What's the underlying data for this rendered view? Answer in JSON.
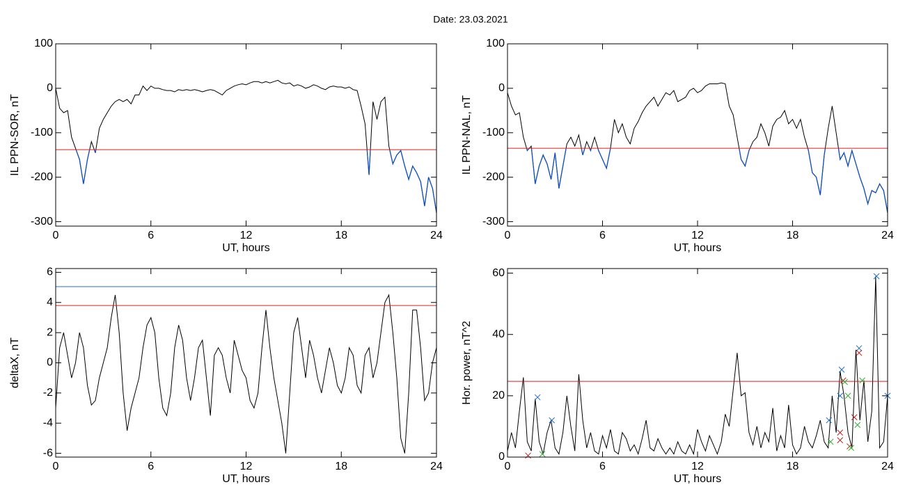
{
  "title": "Date:  23.03.2021",
  "chart_data": [
    {
      "type": "line",
      "ylabel": "IL PPN-SOR, nT",
      "xlabel": "UT, hours",
      "xlim": [
        0,
        24
      ],
      "xticks": [
        0,
        6,
        12,
        18,
        24
      ],
      "ylim": [
        -310,
        100
      ],
      "yticks": [
        -300,
        -200,
        -100,
        0,
        100
      ],
      "x": [
        0,
        0.25,
        0.5,
        0.75,
        1,
        1.25,
        1.5,
        1.75,
        2,
        2.25,
        2.5,
        2.75,
        3,
        3.25,
        3.5,
        3.75,
        4,
        4.25,
        4.5,
        4.75,
        5,
        5.25,
        5.5,
        5.75,
        6,
        6.25,
        6.5,
        6.75,
        7,
        7.25,
        7.5,
        7.75,
        8,
        8.25,
        8.5,
        8.75,
        9,
        9.25,
        9.5,
        9.75,
        10,
        10.25,
        10.5,
        10.75,
        11,
        11.25,
        11.5,
        11.75,
        12,
        12.25,
        12.5,
        12.75,
        13,
        13.25,
        13.5,
        13.75,
        14,
        14.25,
        14.5,
        14.75,
        15,
        15.25,
        15.5,
        15.75,
        16,
        16.25,
        16.5,
        16.75,
        17,
        17.25,
        17.5,
        17.75,
        18,
        18.25,
        18.5,
        18.75,
        19,
        19.25,
        19.5,
        19.75,
        20,
        20.25,
        20.5,
        20.75,
        21,
        21.25,
        21.5,
        21.75,
        22,
        22.25,
        22.5,
        22.75,
        23,
        23.25,
        23.5,
        23.75,
        24
      ],
      "series": [
        {
          "color": "#000000",
          "below_color": "#1050c0",
          "values": [
            0,
            -45,
            -55,
            -50,
            -110,
            -135,
            -160,
            -215,
            -160,
            -120,
            -145,
            -90,
            -70,
            -55,
            -40,
            -30,
            -25,
            -30,
            -25,
            -35,
            -15,
            -15,
            5,
            -5,
            5,
            0,
            0,
            -3,
            -5,
            -5,
            -8,
            -3,
            -5,
            -3,
            -5,
            -3,
            -5,
            -8,
            -5,
            -3,
            -5,
            -10,
            -15,
            -5,
            0,
            5,
            8,
            10,
            8,
            12,
            15,
            15,
            12,
            15,
            12,
            15,
            18,
            12,
            10,
            12,
            5,
            8,
            5,
            0,
            3,
            8,
            5,
            0,
            -3,
            3,
            5,
            3,
            3,
            0,
            3,
            -3,
            -5,
            -40,
            -80,
            -195,
            -30,
            -70,
            -30,
            -20,
            -130,
            -170,
            -150,
            -140,
            -175,
            -205,
            -175,
            -190,
            -210,
            -265,
            -200,
            -225,
            -280
          ]
        }
      ],
      "hlines": [
        {
          "value": -138,
          "color": "#d62020"
        }
      ]
    },
    {
      "type": "line",
      "ylabel": "IL PPN-NAL, nT",
      "xlabel": "UT, hours",
      "xlim": [
        0,
        24
      ],
      "xticks": [
        0,
        6,
        12,
        18,
        24
      ],
      "ylim": [
        -310,
        100
      ],
      "yticks": [
        -300,
        -200,
        -100,
        0,
        100
      ],
      "x": [
        0,
        0.25,
        0.5,
        0.75,
        1,
        1.25,
        1.5,
        1.75,
        2,
        2.25,
        2.5,
        2.75,
        3,
        3.25,
        3.5,
        3.75,
        4,
        4.25,
        4.5,
        4.75,
        5,
        5.25,
        5.5,
        5.75,
        6,
        6.25,
        6.5,
        6.75,
        7,
        7.25,
        7.5,
        7.75,
        8,
        8.25,
        8.5,
        8.75,
        9,
        9.25,
        9.5,
        9.75,
        10,
        10.25,
        10.5,
        10.75,
        11,
        11.25,
        11.5,
        11.75,
        12,
        12.25,
        12.5,
        12.75,
        13,
        13.25,
        13.5,
        13.75,
        14,
        14.25,
        14.5,
        14.75,
        15,
        15.25,
        15.5,
        15.75,
        16,
        16.25,
        16.5,
        16.75,
        17,
        17.25,
        17.5,
        17.75,
        18,
        18.25,
        18.5,
        18.75,
        19,
        19.25,
        19.5,
        19.75,
        20,
        20.25,
        20.5,
        20.75,
        21,
        21.25,
        21.5,
        21.75,
        22,
        22.25,
        22.5,
        22.75,
        23,
        23.25,
        23.5,
        23.75,
        24
      ],
      "series": [
        {
          "color": "#000000",
          "below_color": "#1050c0",
          "values": [
            -10,
            -40,
            -60,
            -55,
            -110,
            -140,
            -130,
            -215,
            -175,
            -150,
            -170,
            -205,
            -145,
            -225,
            -175,
            -125,
            -110,
            -130,
            -105,
            -150,
            -120,
            -140,
            -110,
            -140,
            -160,
            -180,
            -135,
            -70,
            -100,
            -80,
            -110,
            -125,
            -90,
            -75,
            -55,
            -40,
            -30,
            -20,
            -40,
            -25,
            -10,
            -15,
            -5,
            -30,
            -25,
            -20,
            -5,
            0,
            -10,
            -5,
            5,
            10,
            10,
            10,
            12,
            10,
            -40,
            -60,
            -110,
            -160,
            -175,
            -140,
            -120,
            -110,
            -80,
            -100,
            -130,
            -85,
            -70,
            -65,
            -50,
            -80,
            -70,
            -90,
            -70,
            -110,
            -140,
            -190,
            -200,
            -240,
            -150,
            -90,
            -40,
            -100,
            -160,
            -145,
            -175,
            -140,
            -170,
            -200,
            -225,
            -260,
            -230,
            -235,
            -215,
            -230,
            -280
          ]
        }
      ],
      "hlines": [
        {
          "value": -135,
          "color": "#d62020"
        }
      ]
    },
    {
      "type": "line",
      "ylabel": "deltaX, nT",
      "xlabel": "UT, hours",
      "xlim": [
        0,
        24
      ],
      "xticks": [
        0,
        6,
        12,
        18,
        24
      ],
      "ylim": [
        -6.25,
        6.25
      ],
      "yticks": [
        -6,
        -4,
        -2,
        0,
        2,
        4,
        6
      ],
      "x": [
        0,
        0.25,
        0.5,
        0.75,
        1,
        1.25,
        1.5,
        1.75,
        2,
        2.25,
        2.5,
        2.75,
        3,
        3.25,
        3.5,
        3.75,
        4,
        4.25,
        4.5,
        4.75,
        5,
        5.25,
        5.5,
        5.75,
        6,
        6.25,
        6.5,
        6.75,
        7,
        7.25,
        7.5,
        7.75,
        8,
        8.25,
        8.5,
        8.75,
        9,
        9.25,
        9.5,
        9.75,
        10,
        10.25,
        10.5,
        10.75,
        11,
        11.25,
        11.5,
        11.75,
        12,
        12.25,
        12.5,
        12.75,
        13,
        13.25,
        13.5,
        13.75,
        14,
        14.25,
        14.5,
        14.75,
        15,
        15.25,
        15.5,
        15.75,
        16,
        16.25,
        16.5,
        16.75,
        17,
        17.25,
        17.5,
        17.75,
        18,
        18.25,
        18.5,
        18.75,
        19,
        19.25,
        19.5,
        19.75,
        20,
        20.25,
        20.5,
        20.75,
        21,
        21.25,
        21.5,
        21.75,
        22,
        22.25,
        22.5,
        22.75,
        23,
        23.25,
        23.5,
        23.75,
        24
      ],
      "series": [
        {
          "color": "#000000",
          "values": [
            -3,
            1,
            2,
            0.5,
            -1,
            0,
            2,
            1,
            -1.5,
            -2.8,
            -2.5,
            -1,
            0,
            1,
            3,
            4.5,
            2,
            -2,
            -4.5,
            -3,
            -2,
            -1,
            1,
            2.5,
            3,
            2,
            -1,
            -3,
            -3.5,
            -2,
            1,
            2.5,
            1.5,
            -1,
            -2.5,
            -1,
            1,
            1.5,
            -1,
            -3.5,
            0.5,
            1,
            0.5,
            -1,
            -2,
            1.5,
            0.5,
            -0.5,
            -1,
            -2.5,
            -3,
            -2,
            1,
            3.5,
            1,
            -1,
            -2.5,
            -4,
            -6,
            -2,
            2,
            3,
            1,
            -1,
            1.5,
            0.5,
            -1,
            -2,
            -0.5,
            1,
            0,
            -1.5,
            -2,
            -1,
            1,
            0.5,
            -1.5,
            -2,
            0.5,
            1,
            -1,
            0,
            2,
            4,
            4.5,
            2,
            -1,
            -5,
            -6,
            -2,
            3.5,
            3.5,
            1,
            -2.5,
            -2,
            0,
            1
          ]
        }
      ],
      "hlines": [
        {
          "value": 5.05,
          "color": "#1f6fd0"
        },
        {
          "value": 3.8,
          "color": "#d62020"
        }
      ]
    },
    {
      "type": "line",
      "ylabel": "Hor. power, nT^2",
      "xlabel": "UT, hours",
      "xlim": [
        0,
        24
      ],
      "xticks": [
        0,
        6,
        12,
        18,
        24
      ],
      "ylim": [
        0,
        61.5
      ],
      "yticks": [
        0,
        20,
        40,
        60
      ],
      "x": [
        0,
        0.25,
        0.5,
        0.75,
        1,
        1.25,
        1.5,
        1.75,
        2,
        2.25,
        2.5,
        2.75,
        3,
        3.25,
        3.5,
        3.75,
        4,
        4.25,
        4.5,
        4.75,
        5,
        5.25,
        5.5,
        5.75,
        6,
        6.25,
        6.5,
        6.75,
        7,
        7.25,
        7.5,
        7.75,
        8,
        8.25,
        8.5,
        8.75,
        9,
        9.25,
        9.5,
        9.75,
        10,
        10.25,
        10.5,
        10.75,
        11,
        11.25,
        11.5,
        11.75,
        12,
        12.25,
        12.5,
        12.75,
        13,
        13.25,
        13.5,
        13.75,
        14,
        14.25,
        14.5,
        14.75,
        15,
        15.25,
        15.5,
        15.75,
        16,
        16.25,
        16.5,
        16.75,
        17,
        17.25,
        17.5,
        17.75,
        18,
        18.25,
        18.5,
        18.75,
        19,
        19.25,
        19.5,
        19.75,
        20,
        20.25,
        20.5,
        20.75,
        21,
        21.25,
        21.5,
        21.75,
        22,
        22.25,
        22.5,
        22.75,
        23,
        23.25,
        23.5,
        23.75,
        24
      ],
      "series": [
        {
          "color": "#000000",
          "values": [
            2,
            8,
            3,
            15,
            26,
            5,
            2,
            19,
            5,
            1,
            8,
            12,
            3,
            1,
            8,
            20,
            10,
            2,
            27,
            12,
            3,
            8,
            2,
            1,
            7,
            3,
            9,
            2,
            1,
            8,
            6,
            2,
            4,
            1,
            6,
            12,
            3,
            2,
            6,
            3,
            1,
            3,
            1,
            5,
            2,
            1,
            4,
            1,
            9,
            5,
            2,
            7,
            4,
            1,
            5,
            14,
            10,
            22,
            34,
            20,
            21,
            8,
            4,
            10,
            3,
            8,
            5,
            16,
            2,
            7,
            3,
            17,
            4,
            1,
            3,
            10,
            5,
            3,
            7,
            12,
            5,
            3,
            20,
            8,
            28,
            20,
            8,
            3,
            35,
            12,
            25,
            5,
            15,
            59,
            3,
            5,
            20
          ]
        }
      ],
      "hlines": [
        {
          "value": 24.7,
          "color": "#d62020"
        }
      ],
      "markers": [
        {
          "color": "#1f6fd0",
          "x": [
            1.9,
            2.8,
            20.3,
            21.1,
            21.0,
            22.2,
            23.3,
            24
          ],
          "y": [
            19.5,
            12,
            12,
            28.5,
            20,
            35.5,
            59,
            20
          ]
        },
        {
          "color": "#c02020",
          "x": [
            1.3,
            21.0,
            21.0,
            21.6,
            21.9,
            22.2,
            21.2
          ],
          "y": [
            0.5,
            8,
            5.5,
            3.5,
            13,
            34,
            25
          ]
        },
        {
          "color": "#30b030",
          "x": [
            2.2,
            20.4,
            21.3,
            21.5,
            21.7,
            22.1,
            22.4
          ],
          "y": [
            1,
            5,
            24.5,
            20,
            3,
            10.5,
            25
          ]
        }
      ]
    }
  ]
}
